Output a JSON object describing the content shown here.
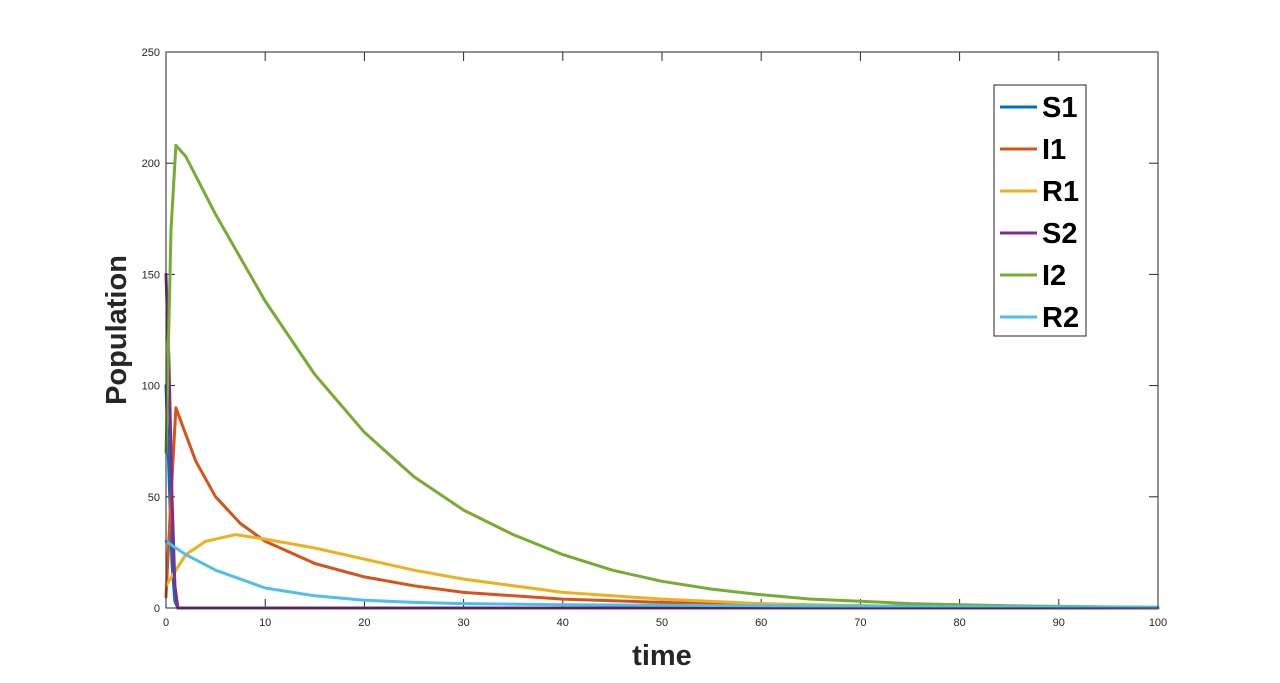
{
  "chart_data": {
    "type": "line",
    "title": "",
    "xlabel": "time",
    "ylabel": "Population",
    "xlim": [
      0,
      100
    ],
    "ylim": [
      0,
      250
    ],
    "xticks": [
      0,
      10,
      20,
      30,
      40,
      50,
      60,
      70,
      80,
      90,
      100
    ],
    "yticks": [
      0,
      50,
      100,
      150,
      200,
      250
    ],
    "grid": false,
    "legend_position": "top-right",
    "series": [
      {
        "name": "S1",
        "color": "#0072BD",
        "x": [
          0,
          0.3,
          0.6,
          0.9,
          1.2,
          100
        ],
        "y": [
          100,
          60,
          20,
          3,
          0,
          0
        ]
      },
      {
        "name": "I1",
        "color": "#D95319",
        "x": [
          0,
          0.5,
          1,
          2,
          3,
          5,
          7.5,
          10,
          15,
          20,
          25,
          30,
          40,
          50,
          60,
          70,
          80,
          90,
          100
        ],
        "y": [
          5,
          50,
          90,
          78,
          66,
          50,
          38,
          30,
          20,
          14,
          10,
          7,
          4,
          2.5,
          1.5,
          1,
          0.6,
          0.4,
          0.2
        ]
      },
      {
        "name": "R1",
        "color": "#EDB120",
        "x": [
          0,
          1,
          2,
          4,
          7,
          10,
          15,
          20,
          25,
          30,
          40,
          50,
          60,
          70,
          80,
          90,
          100
        ],
        "y": [
          10,
          17,
          24,
          30,
          33,
          31,
          27,
          22,
          17,
          13,
          7,
          4,
          2,
          1,
          0.5,
          0.3,
          0.2
        ]
      },
      {
        "name": "S2",
        "color": "#7E2F8E",
        "x": [
          0,
          0.3,
          0.6,
          0.9,
          1.2,
          100
        ],
        "y": [
          150,
          110,
          50,
          10,
          0,
          0
        ]
      },
      {
        "name": "I2",
        "color": "#77AC30",
        "x": [
          0,
          0.5,
          1,
          2,
          5,
          10,
          15,
          20,
          25,
          30,
          35,
          40,
          45,
          50,
          55,
          60,
          65,
          70,
          75,
          80,
          85,
          90,
          95,
          100
        ],
        "y": [
          70,
          170,
          208,
          203,
          177,
          138,
          105,
          79,
          59,
          44,
          33,
          24,
          17,
          12,
          8.5,
          6,
          4,
          3,
          2,
          1.5,
          1,
          0.7,
          0.5,
          0.3
        ]
      },
      {
        "name": "R2",
        "color": "#4DBEEE",
        "x": [
          0,
          1,
          2,
          5,
          10,
          15,
          20,
          25,
          30,
          40,
          50,
          60,
          70,
          80,
          90,
          100
        ],
        "y": [
          30,
          27,
          24,
          17,
          9,
          5.5,
          3.5,
          2.5,
          2,
          1.5,
          1.2,
          1,
          0.8,
          0.6,
          0.4,
          0.3
        ]
      }
    ]
  }
}
